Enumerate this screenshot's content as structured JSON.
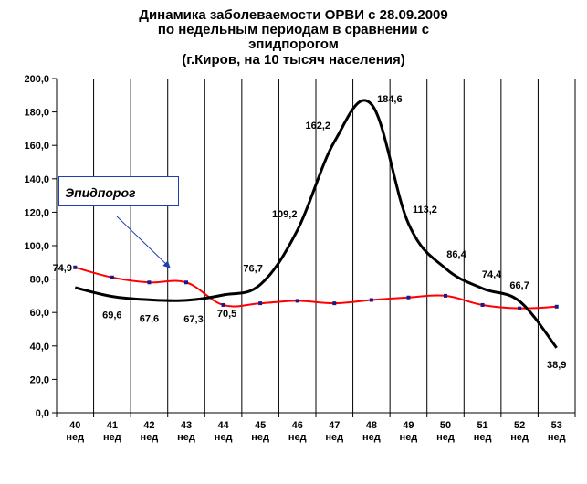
{
  "title_lines": [
    "Динамика заболеваемости ОРВИ с 28.09.2009",
    "по недельным периодам в сравнении с",
    "эпидпорогом",
    "(г.Киров, на 10 тысяч населения)"
  ],
  "chart_data": {
    "type": "line",
    "title": "Динамика заболеваемости ОРВИ с 28.09.2009 по недельным периодам в сравнении с эпидпорогом (г.Киров, на 10 тысяч населения)",
    "categories": [
      [
        "40",
        "нед"
      ],
      [
        "41",
        "нед"
      ],
      [
        "42",
        "нед"
      ],
      [
        "43",
        "нед"
      ],
      [
        "44",
        "нед"
      ],
      [
        "45",
        "нед"
      ],
      [
        "46",
        "нед"
      ],
      [
        "47",
        "нед"
      ],
      [
        "48",
        "нед"
      ],
      [
        "49",
        "нед"
      ],
      [
        "50",
        "нед"
      ],
      [
        "51",
        "нед"
      ],
      [
        "52",
        "нед"
      ],
      [
        "53",
        "нед"
      ]
    ],
    "ylim": [
      0,
      200
    ],
    "yticks": [
      "0,0",
      "20,0",
      "40,0",
      "60,0",
      "80,0",
      "100,0",
      "120,0",
      "140,0",
      "160,0",
      "180,0",
      "200,0"
    ],
    "grid": "vertical",
    "series": [
      {
        "name": "",
        "color": "#000000",
        "values": [
          74.9,
          69.6,
          67.6,
          67.3,
          70.5,
          76.7,
          109.2,
          162.2,
          184.6,
          113.2,
          86.4,
          74.4,
          66.7,
          38.9
        ],
        "labels": [
          "74,9",
          "69,6",
          "67,6",
          "67,3",
          "70,5",
          "76,7",
          "109,2",
          "162,2",
          "184,6",
          "113,2",
          "86,4",
          "74,4",
          "66,7",
          "38,9"
        ]
      },
      {
        "name": "Эпидпорог",
        "color": "#ff0000",
        "marker_color": "#1a1a8c",
        "values": [
          87.0,
          81.0,
          78.0,
          78.0,
          64.5,
          65.5,
          67.0,
          65.5,
          67.5,
          69.0,
          70.0,
          64.5,
          62.5,
          63.5
        ]
      }
    ],
    "legend": {
      "label": "Эпидпорог",
      "placement": "left"
    }
  },
  "colors": {
    "axis": "#000000",
    "grid": "#000000",
    "series1": "#000000",
    "series2": "#ff0000",
    "legend_border": "#1f3fb0",
    "arrow": "#1f3fb0"
  }
}
